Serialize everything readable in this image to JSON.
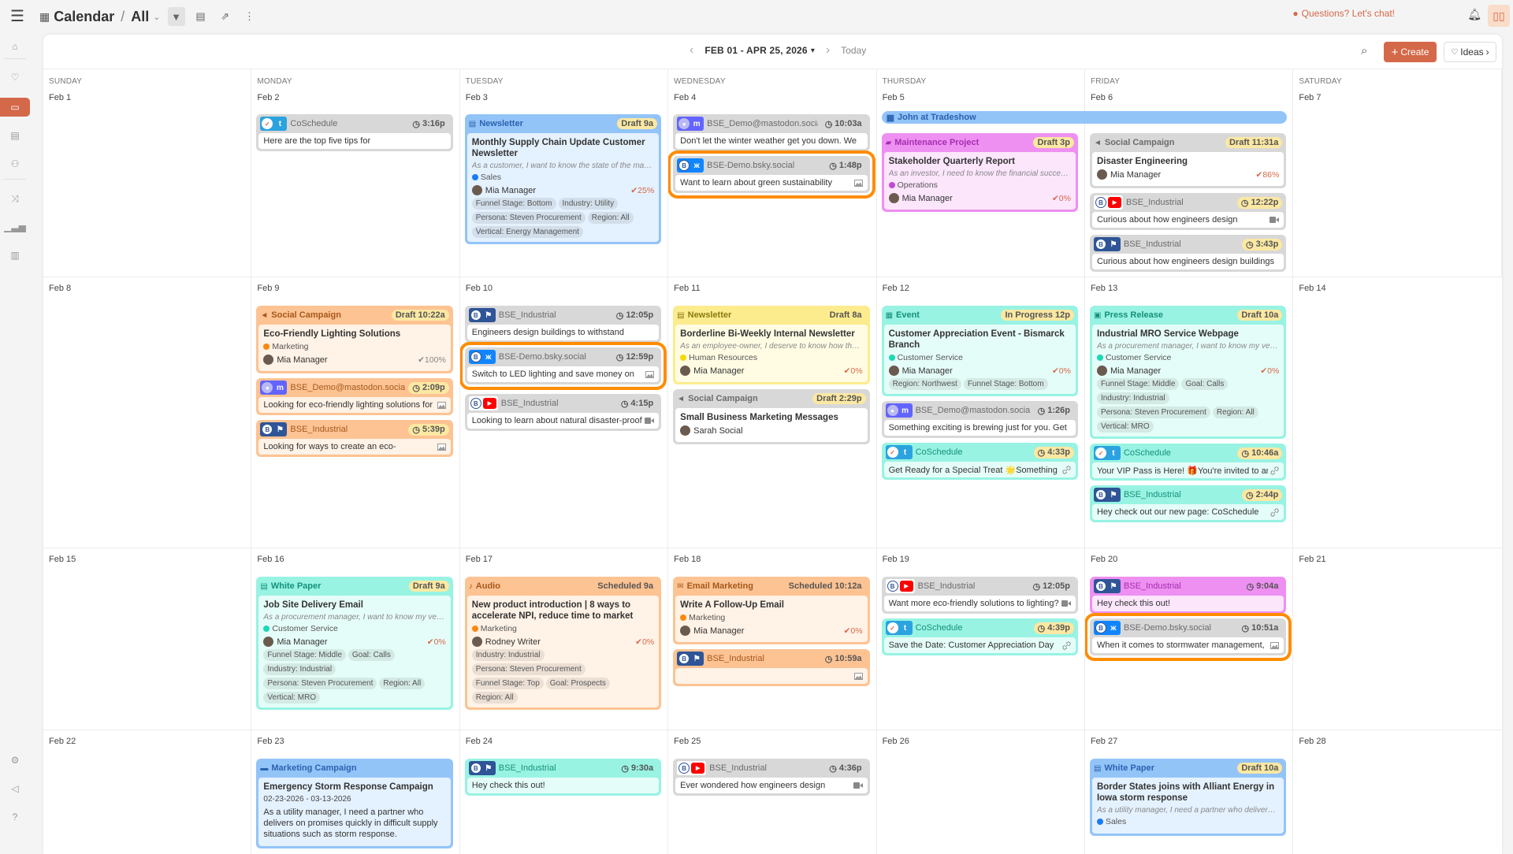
{
  "topbar": {
    "title": "Calendar",
    "view": "All",
    "chat_label": "Questions? Let's chat!",
    "icons": [
      "menu-icon",
      "calendar-icon",
      "chevron-down-icon",
      "filter-icon",
      "calendar-settings-icon",
      "share-icon",
      "more-icon",
      "chat-icon",
      "bell-icon",
      "book-icon"
    ]
  },
  "sidebar": {
    "items": [
      "home",
      "ideas",
      "calendar",
      "table",
      "team",
      "shuffle",
      "analytics",
      "briefcase"
    ],
    "active": "calendar",
    "bottom": [
      "settings",
      "announcements",
      "help"
    ]
  },
  "toolbar": {
    "range": "FEB 01 - APR 25, 2026",
    "today": "Today",
    "create": "Create",
    "ideas": "Ideas"
  },
  "day_names": [
    "SUNDAY",
    "MONDAY",
    "TUESDAY",
    "WEDNESDAY",
    "THURSDAY",
    "FRIDAY",
    "SATURDAY"
  ],
  "colors": {
    "accent": "#d4694a",
    "highlight_ring": "#ff8c00"
  },
  "weeks": [
    {
      "banner": {
        "label": "John at Tradeshow",
        "start": "Feb 5",
        "end": "Feb 6"
      },
      "days": [
        {
          "date": "Feb 1",
          "cards": []
        },
        {
          "date": "Feb 2",
          "cards": [
            {
              "kind": "social",
              "color": "gray",
              "avatar": "coschedule",
              "network": "twitter",
              "account": "CoSchedule",
              "time": "3:16p",
              "time_highlight": false,
              "text": "Here are the top five tips for",
              "attachment": ""
            }
          ]
        },
        {
          "date": "Feb 3",
          "cards": [
            {
              "kind": "project",
              "color": "blue",
              "type": "Newsletter",
              "type_icon": "newsletter",
              "status": "Draft",
              "time": "9a",
              "badge_highlight": true,
              "title": "Monthly Supply Chain Update Customer Newsletter",
              "desc": "As a customer, I want to know the state of the market…",
              "team": "Sales",
              "team_color": "#1a7cf5",
              "owner": "Mia Manager",
              "progress": "25%",
              "tags": [
                "Funnel Stage: Bottom",
                "Industry: Utility",
                "Persona: Steven Procurement",
                "Region: All",
                "Vertical: Energy Management"
              ]
            }
          ]
        },
        {
          "date": "Feb 4",
          "cards": [
            {
              "kind": "social",
              "color": "gray",
              "avatar": "mastodon-default",
              "network": "mastodon",
              "account": "BSE_Demo@mastodon.social",
              "time": "10:03a",
              "time_highlight": false,
              "text": "Don't let the winter weather get you down. We",
              "attachment": ""
            },
            {
              "kind": "social",
              "color": "gray",
              "avatar": "bse",
              "network": "bluesky",
              "account": "BSE-Demo.bsky.social",
              "time": "1:48p",
              "time_highlight": false,
              "text": "Want to learn about green sustainability",
              "attachment": "image",
              "highlighted": true
            }
          ]
        },
        {
          "date": "Feb 5",
          "cards": [
            {
              "kind": "project",
              "color": "pink",
              "type": "Maintenance Project",
              "type_icon": "paint-roller",
              "status": "Draft",
              "time": "3p",
              "badge_highlight": true,
              "title": "Stakeholder Quarterly Report",
              "desc": "As an investor, I need to know the financial success o…",
              "team": "Operations",
              "team_color": "#c04ad8",
              "owner": "Mia Manager",
              "progress": "0%",
              "tags": []
            }
          ]
        },
        {
          "date": "Feb 6",
          "cards": [
            {
              "kind": "project",
              "color": "gray",
              "type": "Social Campaign",
              "type_icon": "megaphone",
              "status": "Draft",
              "time": "11:31a",
              "badge_highlight": true,
              "title": "Disaster Engineering",
              "owner": "Mia Manager",
              "progress": "86%",
              "tags": []
            },
            {
              "kind": "social",
              "color": "gray",
              "avatar": "bse",
              "network": "youtube",
              "account": "BSE_Industrial",
              "time": "12:22p",
              "time_highlight": true,
              "text": "Curious about how engineers design",
              "attachment": "video"
            },
            {
              "kind": "social",
              "color": "gray",
              "avatar": "bse",
              "network": "flag",
              "account": "BSE_Industrial",
              "time": "3:43p",
              "time_highlight": true,
              "text": "Curious about how engineers design buildings",
              "attachment": ""
            }
          ]
        },
        {
          "date": "Feb 7",
          "cards": []
        }
      ]
    },
    {
      "days": [
        {
          "date": "Feb 8",
          "cards": []
        },
        {
          "date": "Feb 9",
          "cards": [
            {
              "kind": "project",
              "color": "orange",
              "type": "Social Campaign",
              "type_icon": "megaphone",
              "status": "Draft",
              "time": "10:22a",
              "badge_highlight": true,
              "title": "Eco-Friendly Lighting Solutions",
              "team": "Marketing",
              "team_color": "#f98a0e",
              "owner": "Mia Manager",
              "progress": "100%",
              "tags": []
            },
            {
              "kind": "social",
              "color": "orange",
              "avatar": "mastodon-default",
              "network": "mastodon",
              "account": "BSE_Demo@mastodon.social",
              "time": "2:09p",
              "time_highlight": true,
              "text": "Looking for eco-friendly lighting solutions for",
              "attachment": "image"
            },
            {
              "kind": "social",
              "color": "orange",
              "avatar": "bse",
              "network": "flag",
              "account": "BSE_Industrial",
              "time": "5:39p",
              "time_highlight": true,
              "text": "Looking for ways to create an eco-",
              "attachment": "image"
            }
          ]
        },
        {
          "date": "Feb 10",
          "cards": [
            {
              "kind": "social",
              "color": "gray",
              "avatar": "bse",
              "network": "flag",
              "account": "BSE_Industrial",
              "time": "12:05p",
              "time_highlight": false,
              "text": "Engineers design buildings to withstand",
              "attachment": ""
            },
            {
              "kind": "social",
              "color": "gray",
              "avatar": "bse",
              "network": "bluesky",
              "account": "BSE-Demo.bsky.social",
              "time": "12:59p",
              "time_highlight": false,
              "text": "Switch to LED lighting and save money on",
              "attachment": "image",
              "highlighted": true
            },
            {
              "kind": "social",
              "color": "gray",
              "avatar": "bse",
              "network": "youtube",
              "account": "BSE_Industrial",
              "time": "4:15p",
              "time_highlight": false,
              "text": "Looking to learn about natural disaster-proof",
              "attachment": "video"
            }
          ]
        },
        {
          "date": "Feb 11",
          "cards": [
            {
              "kind": "project",
              "color": "yellow",
              "type": "Newsletter",
              "type_icon": "newsletter",
              "status": "Draft",
              "time": "8a",
              "badge_highlight": false,
              "title": "Borderline Bi-Weekly Internal Newsletter",
              "desc": "As an employee-owner, I deserve to know how the co…",
              "team": "Human Resources",
              "team_color": "#f5d90a",
              "owner": "Mia Manager",
              "progress": "0%",
              "tags": []
            },
            {
              "kind": "project",
              "color": "gray",
              "type": "Social Campaign",
              "type_icon": "megaphone",
              "status": "Draft",
              "time": "2:29p",
              "badge_highlight": true,
              "title": "Small Business Marketing Messages",
              "owner": "Sarah Social",
              "tags": []
            }
          ]
        },
        {
          "date": "Feb 12",
          "cards": [
            {
              "kind": "project",
              "color": "teal",
              "type": "Event",
              "type_icon": "event",
              "status": "In Progress",
              "time": "12p",
              "badge_highlight": true,
              "title": "Customer Appreciation Event - Bismarck Branch",
              "team": "Customer Service",
              "team_color": "#1ad9b5",
              "owner": "Mia Manager",
              "progress": "0%",
              "tags": [
                "Region: Northwest",
                "Funnel Stage: Bottom"
              ]
            },
            {
              "kind": "social",
              "color": "gray",
              "avatar": "mastodon-default",
              "network": "mastodon",
              "account": "BSE_Demo@mastodon.social",
              "time": "1:26p",
              "time_highlight": false,
              "text": "Something exciting is brewing just for you. Get",
              "attachment": ""
            },
            {
              "kind": "social",
              "color": "teal",
              "avatar": "coschedule",
              "network": "twitter",
              "account": "CoSchedule",
              "time": "4:33p",
              "time_highlight": true,
              "text": "Get Ready for a Special Treat 🌟Something",
              "attachment": "link"
            }
          ]
        },
        {
          "date": "Feb 13",
          "cards": [
            {
              "kind": "project",
              "color": "teal",
              "type": "Press Release",
              "type_icon": "press-release",
              "status": "Draft",
              "time": "10a",
              "badge_highlight": true,
              "title": "Industrial MRO Service Webpage",
              "desc": "As a procurement manager, I want to know my vendo…",
              "team": "Customer Service",
              "team_color": "#1ad9b5",
              "owner": "Mia Manager",
              "progress": "0%",
              "tags": [
                "Funnel Stage: Middle",
                "Goal: Calls",
                "Industry: Industrial",
                "Persona: Steven Procurement",
                "Region: All",
                "Vertical: MRO"
              ]
            },
            {
              "kind": "social",
              "color": "teal",
              "avatar": "coschedule",
              "network": "twitter",
              "account": "CoSchedule",
              "time": "10:46a",
              "time_highlight": true,
              "text": "Your VIP Pass is Here! 🎁You're invited to an",
              "attachment": "link"
            },
            {
              "kind": "social",
              "color": "teal",
              "avatar": "bse",
              "network": "flag",
              "account": "BSE_Industrial",
              "time": "2:44p",
              "time_highlight": true,
              "text": "Hey check out our new page: CoSchedule",
              "attachment": "link"
            }
          ]
        },
        {
          "date": "Feb 14",
          "cards": []
        }
      ]
    },
    {
      "days": [
        {
          "date": "Feb 15",
          "cards": []
        },
        {
          "date": "Feb 16",
          "cards": [
            {
              "kind": "project",
              "color": "teal",
              "type": "White Paper",
              "type_icon": "white-paper",
              "status": "Draft",
              "time": "9a",
              "badge_highlight": true,
              "title": "Job Site Delivery Email",
              "desc": "As a procurement manager, I want to know my vendo…",
              "team": "Customer Service",
              "team_color": "#1ad9b5",
              "owner": "Mia Manager",
              "progress": "0%",
              "tags": [
                "Funnel Stage: Middle",
                "Goal: Calls",
                "Industry: Industrial",
                "Persona: Steven Procurement",
                "Region: All",
                "Vertical: MRO"
              ]
            }
          ]
        },
        {
          "date": "Feb 17",
          "cards": [
            {
              "kind": "project",
              "color": "orange",
              "type": "Audio",
              "type_icon": "microphone",
              "status": "Scheduled",
              "time": "9a",
              "badge_highlight": false,
              "title": "New product introduction | 8 ways to accelerate NPI, reduce time to market",
              "team": "Marketing",
              "team_color": "#f98a0e",
              "owner": "Rodney Writer",
              "progress": "0%",
              "tags": [
                "Industry: Industrial",
                "Persona: Steven Procurement",
                "Funnel Stage: Top",
                "Goal: Prospects",
                "Region: All"
              ]
            }
          ]
        },
        {
          "date": "Feb 18",
          "cards": [
            {
              "kind": "project",
              "color": "orange",
              "type": "Email Marketing",
              "type_icon": "email",
              "status": "Scheduled",
              "time": "10:12a",
              "badge_highlight": false,
              "title": "Write A Follow-Up Email",
              "team": "Marketing",
              "team_color": "#f98a0e",
              "owner": "Mia Manager",
              "progress": "0%",
              "tags": []
            },
            {
              "kind": "social",
              "color": "orange",
              "avatar": "bse",
              "network": "flag",
              "account": "BSE_Industrial",
              "time": "10:59a",
              "time_highlight": false,
              "text": "",
              "attachment": "image"
            }
          ]
        },
        {
          "date": "Feb 19",
          "cards": [
            {
              "kind": "social",
              "color": "gray",
              "avatar": "bse",
              "network": "youtube",
              "account": "BSE_Industrial",
              "time": "12:05p",
              "time_highlight": false,
              "text": "Want more eco-friendly solutions to lighting?",
              "attachment": "video"
            },
            {
              "kind": "social",
              "color": "teal",
              "avatar": "coschedule",
              "network": "twitter",
              "account": "CoSchedule",
              "time": "4:39p",
              "time_highlight": true,
              "text": "Save the Date: Customer Appreciation Day",
              "attachment": "link"
            }
          ]
        },
        {
          "date": "Feb 20",
          "cards": [
            {
              "kind": "social",
              "color": "pink",
              "avatar": "bse",
              "network": "flag",
              "account": "BSE_Industrial",
              "time": "9:04a",
              "time_highlight": false,
              "text": "Hey check this out!",
              "attachment": ""
            },
            {
              "kind": "social",
              "color": "gray",
              "avatar": "bse",
              "network": "bluesky",
              "account": "BSE-Demo.bsky.social",
              "time": "10:51a",
              "time_highlight": false,
              "text": "When it comes to stormwater management,",
              "attachment": "image",
              "highlighted": true
            }
          ]
        },
        {
          "date": "Feb 21",
          "cards": []
        }
      ]
    },
    {
      "days": [
        {
          "date": "Feb 22",
          "cards": []
        },
        {
          "date": "Feb 23",
          "cards": [
            {
              "kind": "project",
              "color": "blue",
              "type": "Marketing Campaign",
              "type_icon": "folder",
              "title": "Emergency Storm Response Campaign",
              "dates": "02-23-2026 - 03-13-2026",
              "desc": "As a utility manager, I need a partner who delivers on promises quickly in difficult supply situations such as storm response.",
              "desc_plain": true,
              "tags": []
            }
          ]
        },
        {
          "date": "Feb 24",
          "cards": [
            {
              "kind": "social",
              "color": "teal",
              "avatar": "bse",
              "network": "flag",
              "account": "BSE_Industrial",
              "time": "9:30a",
              "time_highlight": false,
              "text": "Hey check this out!",
              "attachment": ""
            }
          ]
        },
        {
          "date": "Feb 25",
          "cards": [
            {
              "kind": "social",
              "color": "gray",
              "avatar": "bse",
              "network": "youtube",
              "account": "BSE_Industrial",
              "time": "4:36p",
              "time_highlight": false,
              "text": "Ever wondered how engineers design",
              "attachment": "video"
            }
          ]
        },
        {
          "date": "Feb 26",
          "cards": []
        },
        {
          "date": "Feb 27",
          "cards": [
            {
              "kind": "project",
              "color": "blue",
              "type": "White Paper",
              "type_icon": "white-paper",
              "status": "Draft",
              "time": "10a",
              "badge_highlight": true,
              "title": "Border States joins with Alliant Energy in Iowa storm response",
              "desc": "As a utility manager, I need a partner who delivers on …",
              "team": "Sales",
              "team_color": "#1a7cf5",
              "tags": []
            }
          ]
        },
        {
          "date": "Feb 28",
          "cards": []
        }
      ]
    }
  ]
}
